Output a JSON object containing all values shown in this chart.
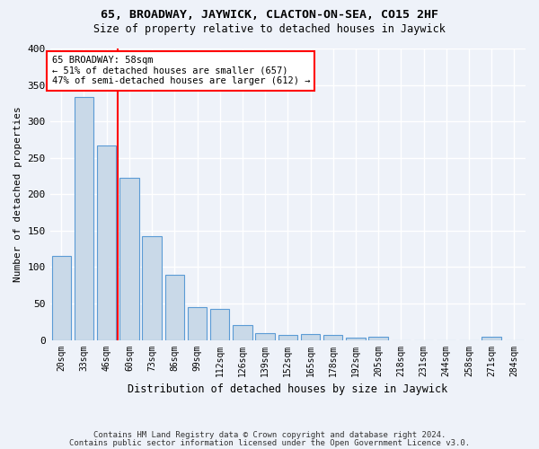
{
  "title": "65, BROADWAY, JAYWICK, CLACTON-ON-SEA, CO15 2HF",
  "subtitle": "Size of property relative to detached houses in Jaywick",
  "xlabel": "Distribution of detached houses by size in Jaywick",
  "ylabel": "Number of detached properties",
  "categories": [
    "20sqm",
    "33sqm",
    "46sqm",
    "60sqm",
    "73sqm",
    "86sqm",
    "99sqm",
    "112sqm",
    "126sqm",
    "139sqm",
    "152sqm",
    "165sqm",
    "178sqm",
    "192sqm",
    "205sqm",
    "218sqm",
    "231sqm",
    "244sqm",
    "258sqm",
    "271sqm",
    "284sqm"
  ],
  "values": [
    115,
    333,
    267,
    222,
    142,
    90,
    45,
    42,
    20,
    9,
    7,
    8,
    7,
    3,
    4,
    0,
    0,
    0,
    0,
    4,
    0
  ],
  "bar_color": "#c9d9e8",
  "bar_edge_color": "#5b9bd5",
  "vline_index": 2.5,
  "annotation_text": "65 BROADWAY: 58sqm\n← 51% of detached houses are smaller (657)\n47% of semi-detached houses are larger (612) →",
  "annotation_box_color": "white",
  "annotation_box_edge_color": "red",
  "vline_color": "red",
  "ylim": [
    0,
    400
  ],
  "yticks": [
    0,
    50,
    100,
    150,
    200,
    250,
    300,
    350,
    400
  ],
  "background_color": "#eef2f9",
  "grid_color": "white",
  "footer_line1": "Contains HM Land Registry data © Crown copyright and database right 2024.",
  "footer_line2": "Contains public sector information licensed under the Open Government Licence v3.0."
}
